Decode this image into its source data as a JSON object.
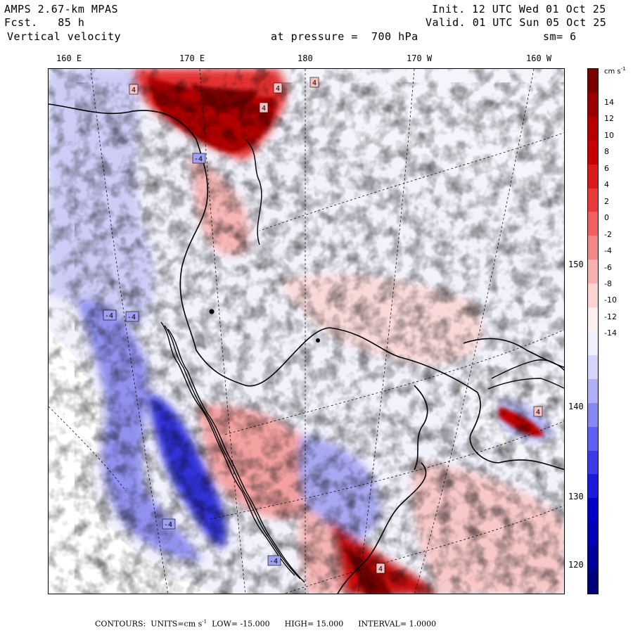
{
  "header": {
    "model": "AMPS 2.67-km MPAS",
    "fcst_label": "Fcst.",
    "fcst_value": "85 h",
    "field": "Vertical velocity",
    "pressure_label": "at pressure =",
    "pressure_value": "700 hPa",
    "init": "Init. 12 UTC Wed 01 Oct 25",
    "valid": "Valid. 01 UTC Sun 05 Oct 25",
    "smooth": "sm= 6"
  },
  "longitudes": [
    "160 E",
    "170 E",
    "180",
    "170 W",
    "160 W"
  ],
  "latitudes": [
    "150 W",
    "140 W",
    "130 W",
    "120 W"
  ],
  "colorbar": {
    "units": "cm s",
    "units_exp": "-1",
    "labels": [
      "14",
      "12",
      "10",
      "8",
      "6",
      "4",
      "2",
      "0",
      "-2",
      "-4",
      "-6",
      "-8",
      "-10",
      "-12",
      "-14"
    ],
    "colors": [
      "#7a0000",
      "#9a0000",
      "#b40000",
      "#c80000",
      "#dc1a1a",
      "#e83a3a",
      "#f06060",
      "#f48888",
      "#f8b0b0",
      "#fcd4d4",
      "#fff0f0",
      "#f0f0ff",
      "#d4d4fc",
      "#b0b0f8",
      "#8888f4",
      "#6060f0",
      "#3a3ae8",
      "#1a1adc",
      "#0000c8",
      "#0000b4",
      "#00009a",
      "#00007a"
    ]
  },
  "footer": {
    "contours": "CONTOURS:",
    "units_label": "UNITS=cm s",
    "units_exp": "-1",
    "low": "LOW= -15.000",
    "high": "HIGH= 15.000",
    "interval": "INTERVAL= 1.0000"
  },
  "map_labels": [
    "4",
    "4",
    "4",
    "4",
    "-4",
    "-4",
    "-4",
    "-4",
    "-4",
    "4",
    "4"
  ]
}
